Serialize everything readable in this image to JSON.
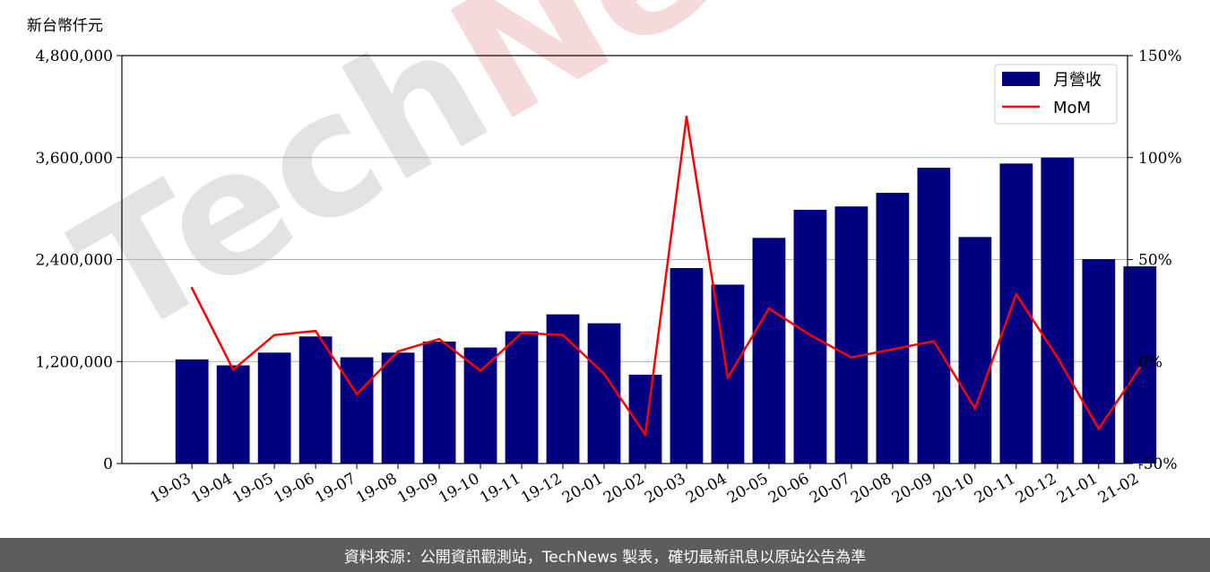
{
  "unit_label": "新台幣仟元",
  "watermark": {
    "dark": "Tech",
    "accent": "News"
  },
  "footer": "資料來源：公開資訊觀測站，TechNews 製表，確切最新訊息以原站公告為準",
  "colors": {
    "bar": "#000080",
    "line": "#ff0000",
    "grid": "#b0b0b0"
  },
  "chart_data": {
    "type": "bar",
    "categories": [
      "19-03",
      "19-04",
      "19-05",
      "19-06",
      "19-07",
      "19-08",
      "19-09",
      "19-10",
      "19-11",
      "19-12",
      "20-01",
      "20-02",
      "20-03",
      "20-04",
      "20-05",
      "20-06",
      "20-07",
      "20-08",
      "20-09",
      "20-10",
      "20-11",
      "20-12",
      "21-01",
      "21-02"
    ],
    "series": [
      {
        "name": "月營收",
        "axis": "left",
        "type": "bar",
        "values": [
          1225000,
          1155000,
          1305000,
          1495000,
          1250000,
          1305000,
          1435000,
          1365000,
          1555000,
          1755000,
          1650000,
          1045000,
          2300000,
          2105000,
          2655000,
          2985000,
          3025000,
          3185000,
          3480000,
          2665000,
          3530000,
          3600000,
          2405000,
          2320000
        ]
      },
      {
        "name": "MoM",
        "axis": "right",
        "type": "line",
        "values": [
          36,
          -4,
          13,
          15,
          -16,
          5,
          11,
          -4.5,
          14,
          13,
          -6,
          -36,
          120,
          -8,
          26,
          13,
          2,
          6,
          10,
          -23,
          33,
          2,
          -33,
          -3
        ]
      }
    ],
    "y_left": {
      "min": 0,
      "max": 4800000,
      "ticks": [
        0,
        1200000,
        2400000,
        3600000,
        4800000
      ],
      "tick_labels": [
        "0",
        "1,200,000",
        "2,400,000",
        "3,600,000",
        "4,800,000"
      ]
    },
    "y_right": {
      "min": -50,
      "max": 150,
      "ticks": [
        -50,
        0,
        50,
        100,
        150
      ],
      "tick_labels": [
        "-50%",
        "0%",
        "50%",
        "100%",
        "150%"
      ]
    },
    "grid": true,
    "legend": "top-right"
  }
}
